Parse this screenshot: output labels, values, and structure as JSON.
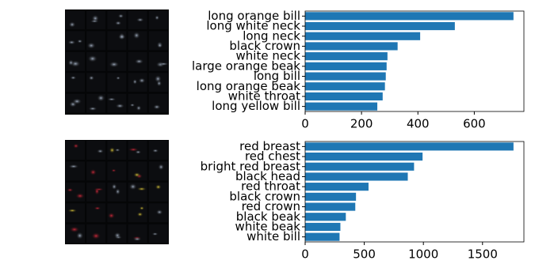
{
  "chart_data": [
    {
      "type": "bar",
      "orientation": "horizontal",
      "color": "#1f77b4",
      "categories": [
        "long orange bill",
        "long white neck",
        "long neck",
        "black crown",
        "white neck",
        "large orange beak",
        "long bill",
        "long orange beak",
        "white throat",
        "long yellow bill"
      ],
      "values": [
        739,
        531,
        408,
        328,
        292,
        289,
        286,
        283,
        275,
        256
      ],
      "xlim": [
        0,
        776
      ],
      "xticks": [
        0,
        200,
        400,
        600
      ]
    },
    {
      "type": "bar",
      "orientation": "horizontal",
      "color": "#1f77b4",
      "categories": [
        "red breast",
        "red chest",
        "bright red breast",
        "black head",
        "red throat",
        "black crown",
        "red crown",
        "black beak",
        "white beak",
        "white bill"
      ],
      "values": [
        1762,
        993,
        921,
        868,
        536,
        430,
        424,
        344,
        298,
        291
      ],
      "xlim": [
        0,
        1850
      ],
      "xticks": [
        0,
        500,
        1000,
        1500
      ]
    }
  ]
}
